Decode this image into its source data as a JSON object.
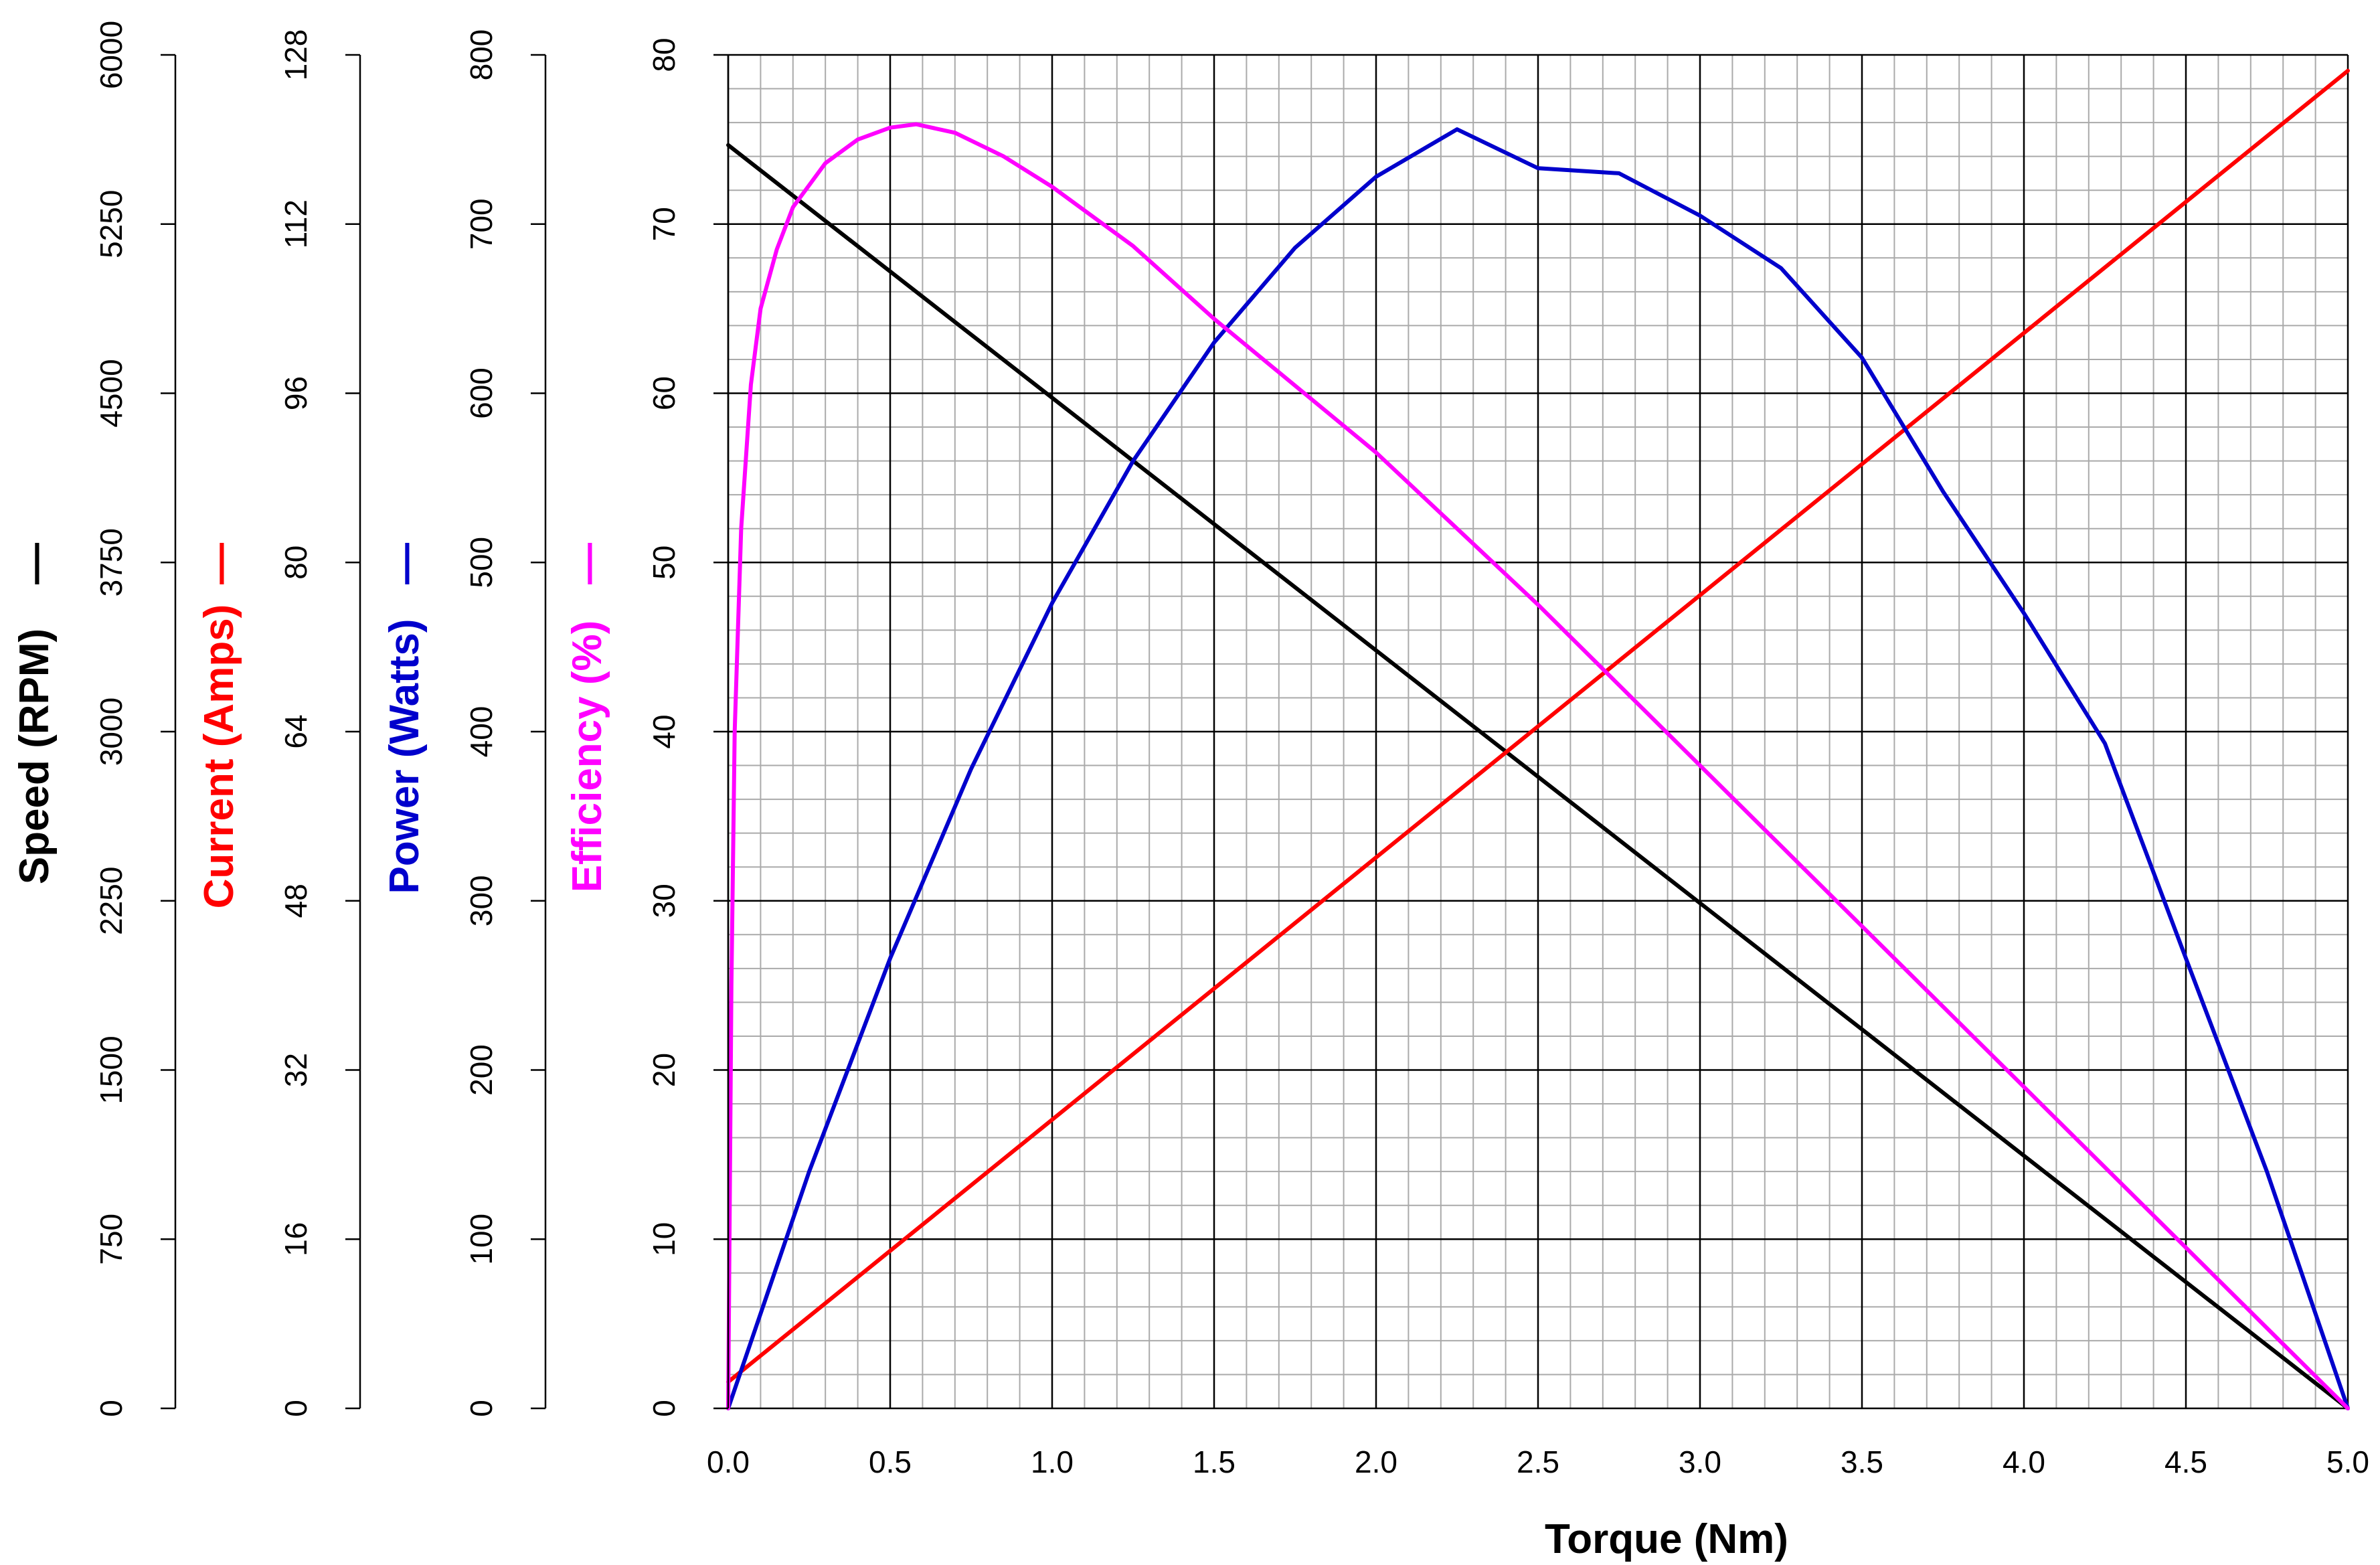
{
  "chart_data": {
    "type": "line",
    "xlabel": "Torque (Nm)",
    "x_ticks": [
      "0.0",
      "0.5",
      "1.0",
      "1.5",
      "2.0",
      "2.5",
      "3.0",
      "3.5",
      "4.0",
      "4.5",
      "5.0"
    ],
    "xlim": [
      0,
      5
    ],
    "grid": true,
    "colors": {
      "speed": "#000000",
      "current": "#ff0000",
      "power": "#0000cc",
      "efficiency": "#ff00ff",
      "major_grid": "#000000",
      "minor_grid": "#aaaaaa"
    },
    "axes": [
      {
        "id": "speed",
        "label": "Speed (RPM)",
        "marker": "—",
        "color": "#000000",
        "ylim": [
          0,
          6000
        ],
        "ticks": [
          "0",
          "750",
          "1500",
          "2250",
          "3000",
          "3750",
          "4500",
          "5250",
          "6000"
        ]
      },
      {
        "id": "current",
        "label": "Current (Amps)",
        "marker": "—",
        "color": "#ff0000",
        "ylim": [
          0,
          128
        ],
        "ticks": [
          "0",
          "16",
          "32",
          "48",
          "64",
          "80",
          "96",
          "112",
          "128"
        ]
      },
      {
        "id": "power",
        "label": "Power (Watts)",
        "marker": "—",
        "color": "#0000cc",
        "ylim": [
          0,
          800
        ],
        "ticks": [
          "0",
          "100",
          "200",
          "300",
          "400",
          "500",
          "600",
          "700",
          "800"
        ]
      },
      {
        "id": "efficiency",
        "label": "Efficiency (%)",
        "marker": "—",
        "color": "#ff00ff",
        "ylim": [
          0,
          80
        ],
        "ticks": [
          "0",
          "10",
          "20",
          "30",
          "40",
          "50",
          "60",
          "70",
          "80"
        ]
      }
    ],
    "series": [
      {
        "name": "Speed (RPM)",
        "axis": "speed",
        "x": [
          0.0,
          5.0
        ],
        "y": [
          5600,
          0
        ]
      },
      {
        "name": "Current (Amps)",
        "axis": "current",
        "x": [
          0.0,
          5.0
        ],
        "y": [
          2.5,
          126.5
        ]
      },
      {
        "name": "Power (Watts)",
        "axis": "power",
        "x": [
          0.0,
          0.25,
          0.5,
          0.75,
          1.0,
          1.25,
          1.5,
          1.75,
          2.0,
          2.25,
          2.5,
          2.75,
          3.0,
          3.25,
          3.5,
          3.75,
          4.0,
          4.25,
          4.5,
          4.75,
          5.0
        ],
        "y": [
          0,
          140,
          266,
          378,
          476,
          560,
          630,
          686,
          728,
          756,
          733,
          730,
          705,
          674,
          621,
          542,
          470,
          393,
          266,
          140,
          0
        ]
      },
      {
        "name": "Efficiency (%)",
        "axis": "efficiency",
        "x": [
          0.0,
          0.01,
          0.02,
          0.04,
          0.07,
          0.1,
          0.15,
          0.2,
          0.3,
          0.4,
          0.5,
          0.58,
          0.7,
          0.85,
          1.0,
          1.25,
          1.5,
          2.0,
          2.5,
          3.0,
          3.5,
          4.0,
          4.5,
          5.0
        ],
        "y": [
          0,
          25.0,
          40.0,
          52.0,
          60.5,
          65.0,
          68.5,
          71.0,
          73.6,
          75.0,
          75.7,
          75.9,
          75.4,
          74.0,
          72.2,
          68.7,
          64.4,
          56.5,
          47.5,
          38.0,
          28.5,
          19.0,
          9.5,
          0
        ]
      }
    ]
  }
}
